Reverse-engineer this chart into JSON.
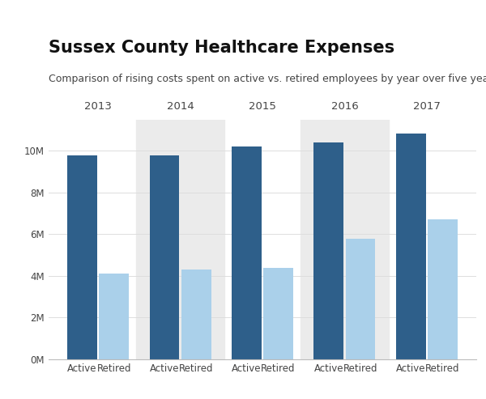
{
  "title": "Sussex County Healthcare Expenses",
  "subtitle": "Comparison of rising costs spent on active vs. retired employees by year over five years.",
  "years": [
    "2013",
    "2014",
    "2015",
    "2016",
    "2017"
  ],
  "active_values": [
    9800000,
    9780000,
    10200000,
    10420000,
    10820000
  ],
  "retired_values": [
    4100000,
    4300000,
    4370000,
    5800000,
    6700000
  ],
  "active_color": "#2e5f8a",
  "retired_color": "#aad0ea",
  "bg_color": "#ffffff",
  "shaded_color": "#ebebeb",
  "bar_width": 0.8,
  "ylim": [
    0,
    11500000
  ],
  "yticks": [
    0,
    2000000,
    4000000,
    6000000,
    8000000,
    10000000
  ],
  "ytick_labels": [
    "0M",
    "2M",
    "4M",
    "6M",
    "8M",
    "10M"
  ],
  "xlabel_active": "Active",
  "xlabel_retired": "Retired",
  "title_fontsize": 15,
  "subtitle_fontsize": 9,
  "tick_fontsize": 8.5,
  "year_fontsize": 9.5,
  "grid_color": "#dddddd",
  "text_color": "#444444"
}
